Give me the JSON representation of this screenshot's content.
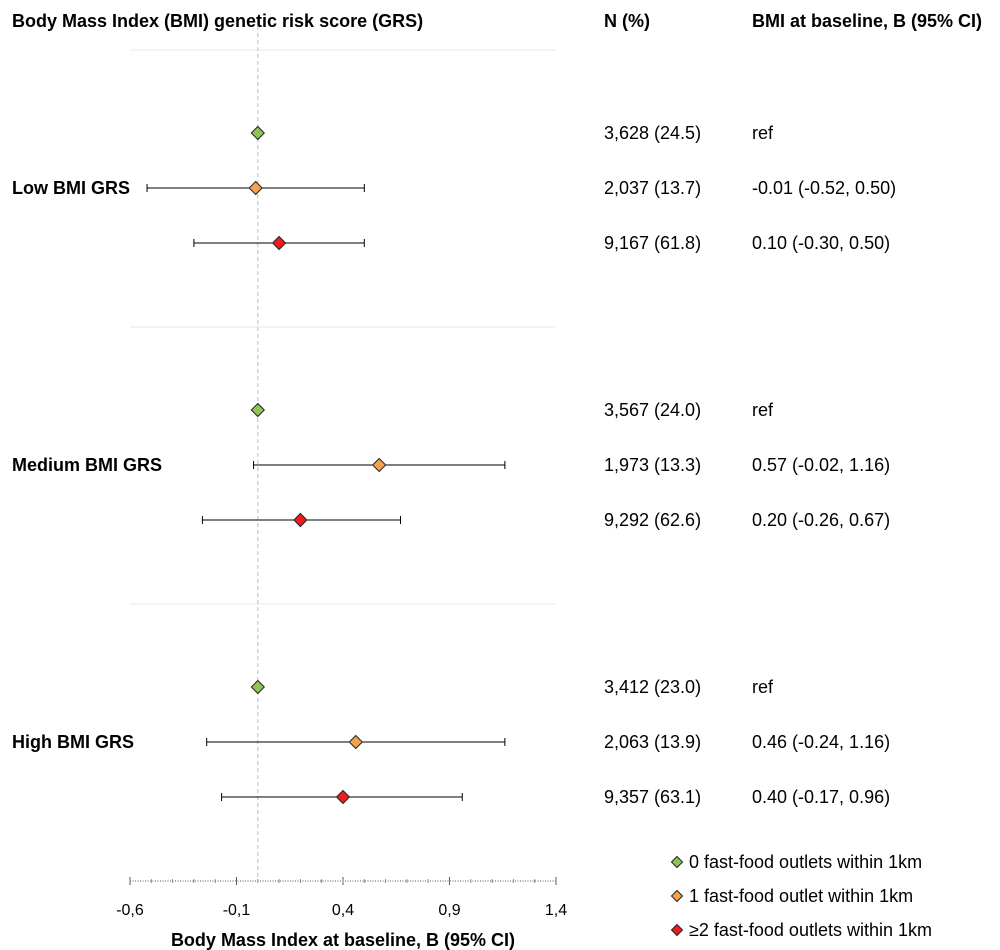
{
  "chart_data": {
    "type": "forest",
    "title": "Body Mass Index (BMI) genetic risk score (GRS)",
    "col_n_header": "N (%)",
    "col_b_header": "BMI at baseline, B (95% CI)",
    "xlabel": "Body Mass Index at baseline, B (95% CI)",
    "xlim": [
      -0.6,
      1.4
    ],
    "xticks": [
      "-0,6",
      "-0,1",
      "0,4",
      "0,9",
      "1,4"
    ],
    "xtick_values": [
      -0.6,
      -0.1,
      0.4,
      0.9,
      1.4
    ],
    "reference_line": 0,
    "series_colors": [
      "#8dc655",
      "#f5a24e",
      "#ee1c1c"
    ],
    "legend": [
      "0 fast-food outlets within 1km",
      "1 fast-food outlet within 1km",
      "≥2 fast-food outlets within 1km"
    ],
    "legend_placement": "bottom-right",
    "groups": [
      {
        "label": "Low BMI GRS",
        "rows": [
          {
            "series": 0,
            "n_pct": "3,628 (24.5)",
            "ci_text": "ref",
            "b": 0,
            "lo": null,
            "hi": null
          },
          {
            "series": 1,
            "n_pct": "2,037 (13.7)",
            "ci_text": "-0.01 (-0.52, 0.50)",
            "b": -0.01,
            "lo": -0.52,
            "hi": 0.5
          },
          {
            "series": 2,
            "n_pct": "9,167 (61.8)",
            "ci_text": "0.10 (-0.30, 0.50)",
            "b": 0.1,
            "lo": -0.3,
            "hi": 0.5
          }
        ]
      },
      {
        "label": "Medium BMI GRS",
        "rows": [
          {
            "series": 0,
            "n_pct": "3,567 (24.0)",
            "ci_text": "ref",
            "b": 0,
            "lo": null,
            "hi": null
          },
          {
            "series": 1,
            "n_pct": "1,973 (13.3)",
            "ci_text": "0.57 (-0.02, 1.16)",
            "b": 0.57,
            "lo": -0.02,
            "hi": 1.16
          },
          {
            "series": 2,
            "n_pct": "9,292 (62.6)",
            "ci_text": "0.20 (-0.26, 0.67)",
            "b": 0.2,
            "lo": -0.26,
            "hi": 0.67
          }
        ]
      },
      {
        "label": "High BMI GRS",
        "rows": [
          {
            "series": 0,
            "n_pct": "3,412 (23.0)",
            "ci_text": "ref",
            "b": 0,
            "lo": null,
            "hi": null
          },
          {
            "series": 1,
            "n_pct": "2,063 (13.9)",
            "ci_text": "0.46 (-0.24, 1.16)",
            "b": 0.46,
            "lo": -0.24,
            "hi": 1.16
          },
          {
            "series": 2,
            "n_pct": "9,357 (63.1)",
            "ci_text": "0.40 (-0.17, 0.96)",
            "b": 0.4,
            "lo": -0.17,
            "hi": 0.96
          }
        ]
      }
    ]
  }
}
